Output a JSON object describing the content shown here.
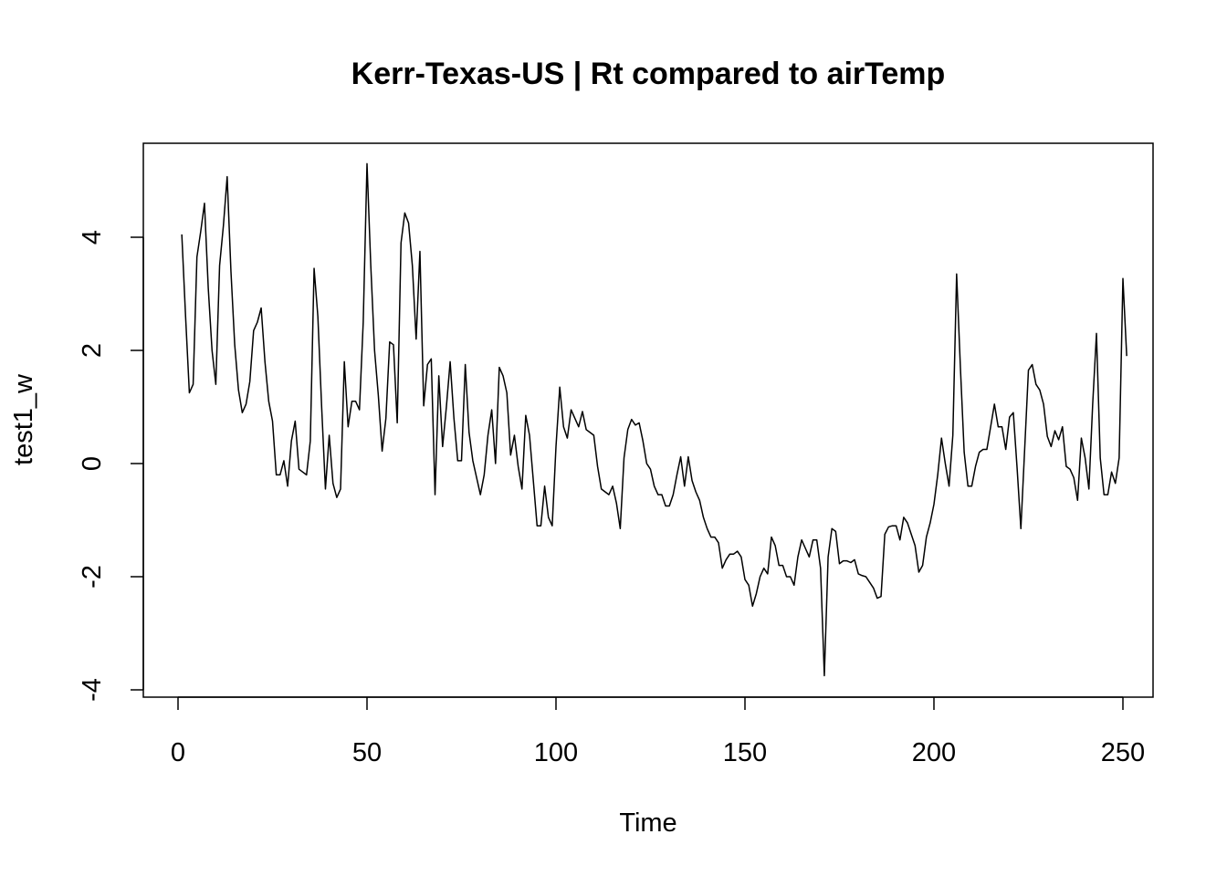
{
  "chart_data": {
    "type": "line",
    "title": "Kerr-Texas-US | Rt compared to airTemp",
    "xlabel": "Time",
    "ylabel": "test1_w",
    "xlim": [
      0,
      250
    ],
    "ylim": [
      -4,
      5.3
    ],
    "x_ticks": [
      0,
      50,
      100,
      150,
      200,
      250
    ],
    "y_ticks": [
      -4,
      -2,
      0,
      2,
      4
    ],
    "grid": false,
    "series": [
      {
        "x_start": 1,
        "x_step": 1,
        "color": "#000000",
        "values": [
          4.05,
          2.6,
          1.25,
          1.4,
          3.65,
          4.1,
          4.6,
          3.1,
          2.0,
          1.4,
          3.5,
          4.2,
          5.07,
          3.4,
          2.1,
          1.3,
          0.9,
          1.05,
          1.45,
          2.35,
          2.5,
          2.75,
          1.8,
          1.1,
          0.75,
          -0.2,
          -0.2,
          0.05,
          -0.4,
          0.4,
          0.75,
          -0.1,
          -0.15,
          -0.2,
          0.4,
          3.45,
          2.6,
          1.0,
          -0.45,
          0.5,
          -0.35,
          -0.6,
          -0.45,
          1.8,
          0.65,
          1.1,
          1.1,
          0.95,
          2.5,
          5.3,
          3.5,
          2.0,
          1.2,
          0.22,
          0.8,
          2.15,
          2.1,
          0.72,
          3.9,
          4.43,
          4.25,
          3.5,
          2.2,
          3.75,
          1.02,
          1.75,
          1.85,
          -0.55,
          1.55,
          0.3,
          1.0,
          1.8,
          0.8,
          0.05,
          0.05,
          1.75,
          0.55,
          0.05,
          -0.25,
          -0.55,
          -0.2,
          0.5,
          0.95,
          0.0,
          1.7,
          1.55,
          1.25,
          0.15,
          0.5,
          -0.05,
          -0.45,
          0.85,
          0.5,
          -0.3,
          -1.1,
          -1.1,
          -0.4,
          -0.95,
          -1.1,
          0.3,
          1.35,
          0.65,
          0.45,
          0.95,
          0.8,
          0.65,
          0.92,
          0.6,
          0.55,
          0.5,
          -0.05,
          -0.45,
          -0.5,
          -0.55,
          -0.4,
          -0.7,
          -1.15,
          0.1,
          0.6,
          0.78,
          0.68,
          0.72,
          0.4,
          0.0,
          -0.1,
          -0.4,
          -0.55,
          -0.55,
          -0.75,
          -0.75,
          -0.55,
          -0.2,
          0.12,
          -0.4,
          0.12,
          -0.3,
          -0.5,
          -0.65,
          -0.95,
          -1.15,
          -1.3,
          -1.3,
          -1.4,
          -1.85,
          -1.7,
          -1.6,
          -1.6,
          -1.55,
          -1.65,
          -2.05,
          -2.15,
          -2.52,
          -2.3,
          -2.0,
          -1.85,
          -1.95,
          -1.3,
          -1.45,
          -1.8,
          -1.8,
          -2.0,
          -2.0,
          -2.15,
          -1.65,
          -1.35,
          -1.5,
          -1.65,
          -1.35,
          -1.35,
          -1.85,
          -3.75,
          -1.65,
          -1.15,
          -1.2,
          -1.77,
          -1.72,
          -1.72,
          -1.75,
          -1.7,
          -1.95,
          -1.98,
          -2.0,
          -2.1,
          -2.2,
          -2.38,
          -2.35,
          -1.25,
          -1.12,
          -1.1,
          -1.1,
          -1.35,
          -0.95,
          -1.05,
          -1.25,
          -1.45,
          -1.92,
          -1.8,
          -1.3,
          -1.05,
          -0.72,
          -0.2,
          0.45,
          0.0,
          -0.4,
          0.5,
          3.35,
          1.7,
          0.2,
          -0.4,
          -0.4,
          -0.05,
          0.2,
          0.25,
          0.25,
          0.65,
          1.05,
          0.65,
          0.65,
          0.25,
          0.82,
          0.9,
          -0.08,
          -1.15,
          0.25,
          1.65,
          1.75,
          1.4,
          1.3,
          1.05,
          0.48,
          0.3,
          0.58,
          0.42,
          0.65,
          -0.05,
          -0.1,
          -0.25,
          -0.65,
          0.45,
          0.1,
          -0.45,
          1.05,
          2.3,
          0.1,
          -0.55,
          -0.55,
          -0.15,
          -0.35,
          0.1,
          3.27,
          1.9
        ]
      }
    ]
  }
}
